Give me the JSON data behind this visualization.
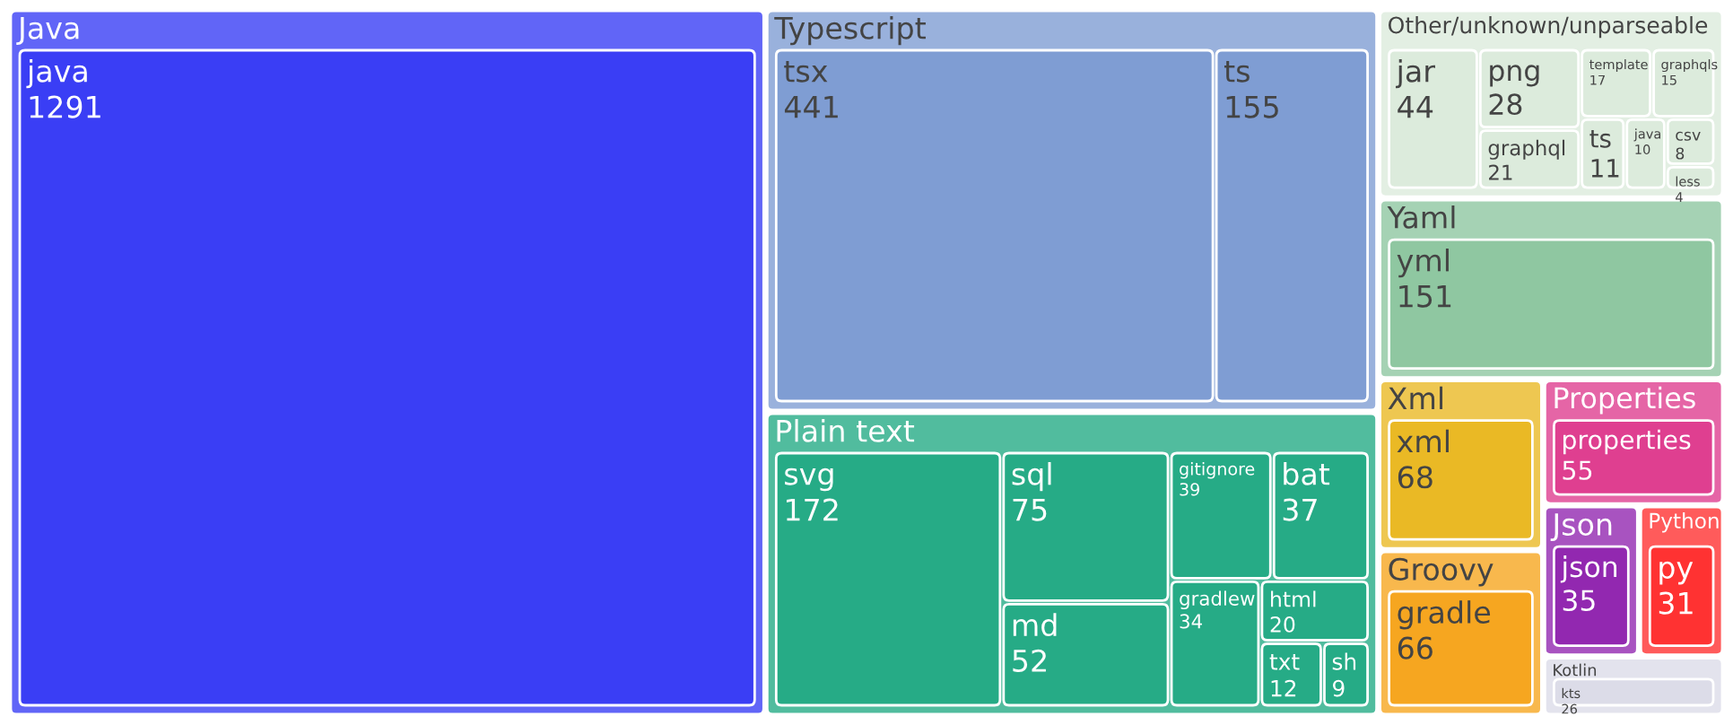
{
  "chart_data": {
    "type": "other",
    "data_labels": true,
    "categories": [
      "java",
      "tsx",
      "ts",
      "svg",
      "sql",
      "md",
      "gitignore",
      "bat",
      "gradlew",
      "html",
      "txt",
      "sh",
      "jar",
      "png",
      "graphql",
      "template",
      "graphqls",
      "ts",
      "java",
      "csv",
      "less",
      "yml",
      "xml",
      "gradle",
      "properties",
      "json",
      "py",
      "kts"
    ],
    "series": [
      {
        "name": "Java",
        "color": "#3a3ef5",
        "values": [
          1291,
          null,
          null,
          null,
          null,
          null,
          null,
          null,
          null,
          null,
          null,
          null,
          null,
          null,
          null,
          null,
          null,
          null,
          null,
          null,
          null,
          null,
          null,
          null,
          null,
          null,
          null,
          null
        ]
      },
      {
        "name": "Typescript",
        "color": "#7f9dd3",
        "values": [
          null,
          441,
          155,
          null,
          null,
          null,
          null,
          null,
          null,
          null,
          null,
          null,
          null,
          null,
          null,
          null,
          null,
          null,
          null,
          null,
          null,
          null,
          null,
          null,
          null,
          null,
          null,
          null
        ]
      },
      {
        "name": "Plain text",
        "color": "#26ab86",
        "values": [
          null,
          null,
          null,
          172,
          75,
          52,
          39,
          37,
          34,
          20,
          12,
          9,
          null,
          null,
          null,
          null,
          null,
          null,
          null,
          null,
          null,
          null,
          null,
          null,
          null,
          null,
          null,
          null
        ]
      },
      {
        "name": "Other/unknown/unparseable",
        "color": "#dcebdc",
        "values": [
          null,
          null,
          null,
          null,
          null,
          null,
          null,
          null,
          null,
          null,
          null,
          null,
          44,
          28,
          21,
          17,
          15,
          11,
          10,
          8,
          4,
          null,
          null,
          null,
          null,
          null,
          null,
          null
        ]
      },
      {
        "name": "Yaml",
        "color": "#8fc7a1",
        "values": [
          null,
          null,
          null,
          null,
          null,
          null,
          null,
          null,
          null,
          null,
          null,
          null,
          null,
          null,
          null,
          null,
          null,
          null,
          null,
          null,
          null,
          151,
          null,
          null,
          null,
          null,
          null,
          null
        ]
      },
      {
        "name": "Xml",
        "color": "#eab925",
        "values": [
          null,
          null,
          null,
          null,
          null,
          null,
          null,
          null,
          null,
          null,
          null,
          null,
          null,
          null,
          null,
          null,
          null,
          null,
          null,
          null,
          null,
          null,
          68,
          null,
          null,
          null,
          null,
          null
        ]
      },
      {
        "name": "Groovy",
        "color": "#f6a620",
        "values": [
          null,
          null,
          null,
          null,
          null,
          null,
          null,
          null,
          null,
          null,
          null,
          null,
          null,
          null,
          null,
          null,
          null,
          null,
          null,
          null,
          null,
          null,
          null,
          66,
          null,
          null,
          null,
          null
        ]
      },
      {
        "name": "Properties",
        "color": "#df3f90",
        "values": [
          null,
          null,
          null,
          null,
          null,
          null,
          null,
          null,
          null,
          null,
          null,
          null,
          null,
          null,
          null,
          null,
          null,
          null,
          null,
          null,
          null,
          null,
          null,
          null,
          55,
          null,
          null,
          null
        ]
      },
      {
        "name": "Json",
        "color": "#9228b0",
        "values": [
          null,
          null,
          null,
          null,
          null,
          null,
          null,
          null,
          null,
          null,
          null,
          null,
          null,
          null,
          null,
          null,
          null,
          null,
          null,
          null,
          null,
          null,
          null,
          null,
          null,
          35,
          null,
          null
        ]
      },
      {
        "name": "Python",
        "color": "#ff3232",
        "values": [
          null,
          null,
          null,
          null,
          null,
          null,
          null,
          null,
          null,
          null,
          null,
          null,
          null,
          null,
          null,
          null,
          null,
          null,
          null,
          null,
          null,
          null,
          null,
          null,
          null,
          null,
          31,
          null
        ]
      },
      {
        "name": "Kotlin",
        "color": "#dcdce8",
        "values": [
          null,
          null,
          null,
          null,
          null,
          null,
          null,
          null,
          null,
          null,
          null,
          null,
          null,
          null,
          null,
          null,
          null,
          null,
          null,
          null,
          null,
          null,
          null,
          null,
          null,
          null,
          null,
          26
        ]
      }
    ]
  }
}
